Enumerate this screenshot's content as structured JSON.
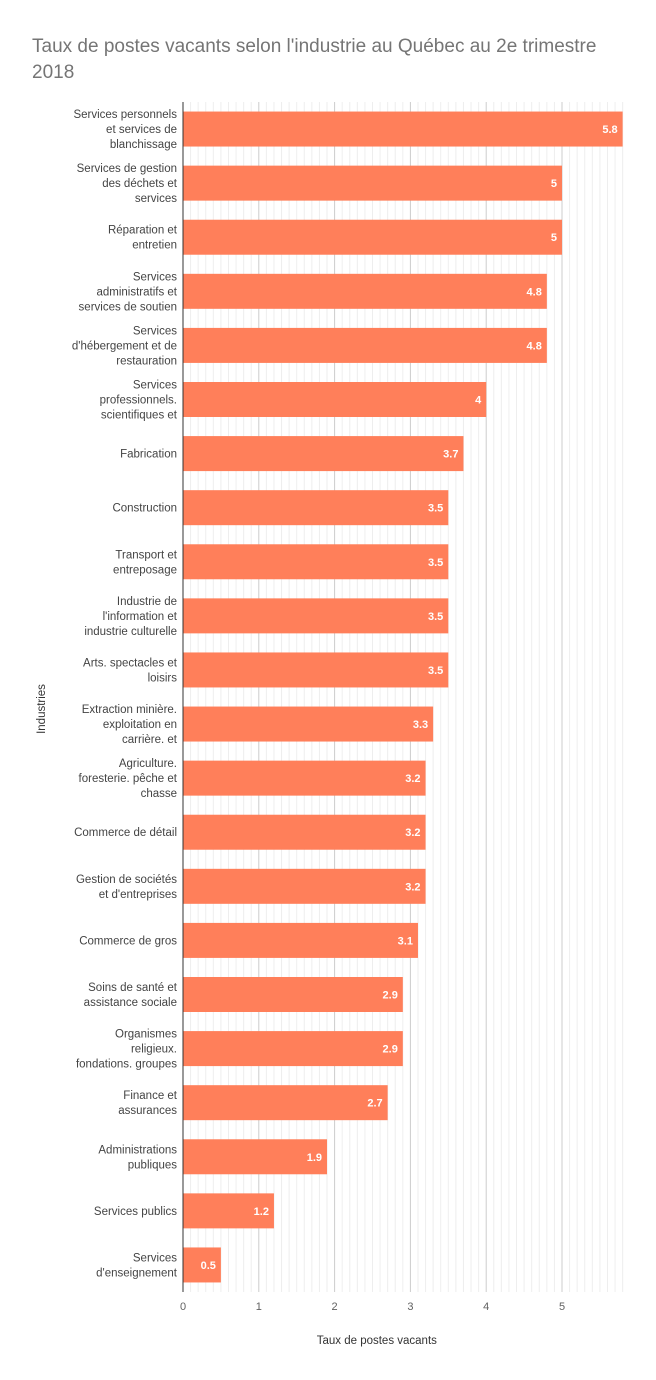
{
  "chart_data": {
    "type": "bar",
    "orientation": "horizontal",
    "title": "Taux de postes vacants selon l'industrie au Québec au 2e trimestre 2018",
    "xlabel": "Taux de postes vacants",
    "ylabel": "Industries",
    "xlim": [
      0,
      5.8
    ],
    "x_ticks": [
      0,
      1,
      2,
      3,
      4,
      5
    ],
    "minor_grid_step": 0.1,
    "grid": true,
    "legend": "none",
    "bar_color": "#ff7f5a",
    "categories": [
      "Services personnels et services de blanchissage",
      "Services de gestion des déchets et services",
      "Réparation et entretien",
      "Services administratifs et services de soutien",
      "Services d'hébergement et de restauration",
      "Services professionnels. scientifiques et",
      "Fabrication",
      "Construction",
      "Transport et entreposage",
      "Industrie de l'information et industrie culturelle",
      "Arts. spectacles et loisirs",
      "Extraction minière. exploitation en carrière. et",
      "Agriculture. foresterie. pêche et chasse",
      "Commerce de détail",
      "Gestion de sociétés et d'entreprises",
      "Commerce de gros",
      "Soins de santé et assistance sociale",
      "Organismes religieux. fondations. groupes",
      "Finance et assurances",
      "Administrations publiques",
      "Services publics",
      "Services d'enseignement"
    ],
    "category_lines": [
      [
        "Services personnels",
        "et services de",
        "blanchissage"
      ],
      [
        "Services de gestion",
        "des déchets et",
        "services"
      ],
      [
        "Réparation et",
        "entretien"
      ],
      [
        "Services",
        "administratifs et",
        "services de soutien"
      ],
      [
        "Services",
        "d'hébergement et de",
        "restauration"
      ],
      [
        "Services",
        "professionnels.",
        "scientifiques et"
      ],
      [
        "Fabrication"
      ],
      [
        "Construction"
      ],
      [
        "Transport et",
        "entreposage"
      ],
      [
        "Industrie de",
        "l'information et",
        "industrie culturelle"
      ],
      [
        "Arts. spectacles et",
        "loisirs"
      ],
      [
        "Extraction minière.",
        "exploitation en",
        "carrière. et"
      ],
      [
        "Agriculture.",
        "foresterie. pêche et",
        "chasse"
      ],
      [
        "Commerce de détail"
      ],
      [
        "Gestion de sociétés",
        "et d'entreprises"
      ],
      [
        "Commerce de gros"
      ],
      [
        "Soins de santé et",
        "assistance sociale"
      ],
      [
        "Organismes",
        "religieux.",
        "fondations. groupes"
      ],
      [
        "Finance et",
        "assurances"
      ],
      [
        "Administrations",
        "publiques"
      ],
      [
        "Services publics"
      ],
      [
        "Services",
        "d'enseignement"
      ]
    ],
    "values": [
      5.8,
      5,
      5,
      4.8,
      4.8,
      4,
      3.7,
      3.5,
      3.5,
      3.5,
      3.5,
      3.3,
      3.2,
      3.2,
      3.2,
      3.1,
      2.9,
      2.9,
      2.7,
      1.9,
      1.2,
      0.5
    ],
    "value_labels": [
      "5.8",
      "5",
      "5",
      "4.8",
      "4.8",
      "4",
      "3.7",
      "3.5",
      "3.5",
      "3.5",
      "3.5",
      "3.3",
      "3.2",
      "3.2",
      "3.2",
      "3.1",
      "2.9",
      "2.9",
      "2.7",
      "1.9",
      "1.2",
      "0.5"
    ]
  }
}
